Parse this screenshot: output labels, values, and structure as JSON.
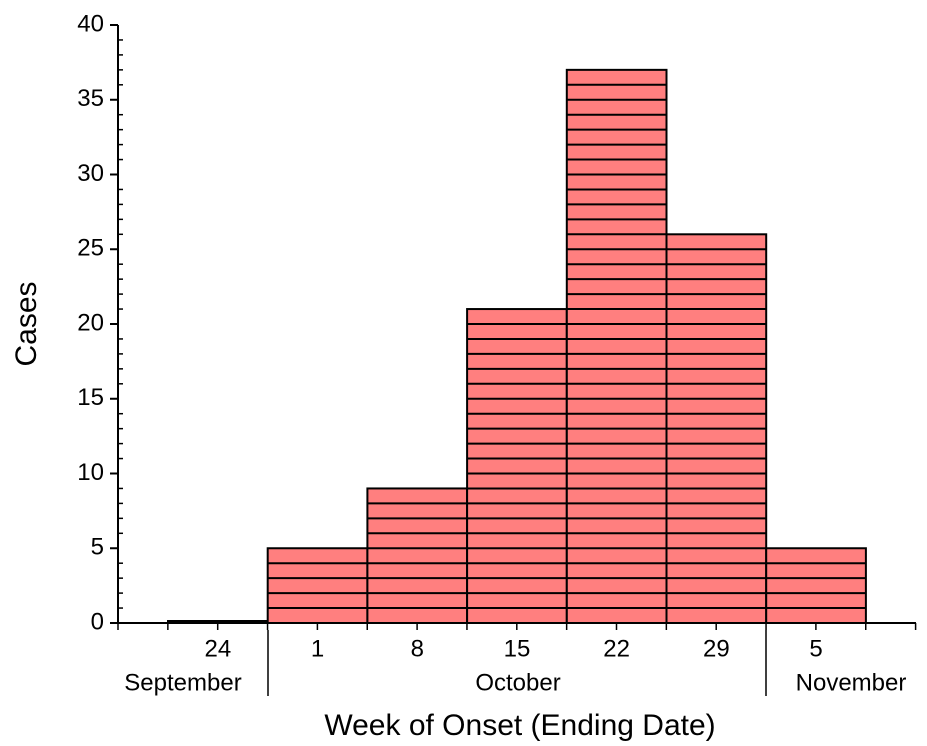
{
  "chart_data": {
    "type": "bar",
    "x_label": "Week of Onset (Ending Date)",
    "y_label": "Cases",
    "categories": [
      "24",
      "1",
      "8",
      "15",
      "22",
      "29",
      "5"
    ],
    "month_labels": [
      "September",
      "October",
      "November"
    ],
    "values": [
      0,
      5,
      9,
      21,
      37,
      26,
      5
    ],
    "color": "#ff7f7f",
    "ylim": [
      0,
      40
    ],
    "yticks": [
      0,
      5,
      10,
      15,
      20,
      25,
      30,
      35,
      40
    ]
  }
}
